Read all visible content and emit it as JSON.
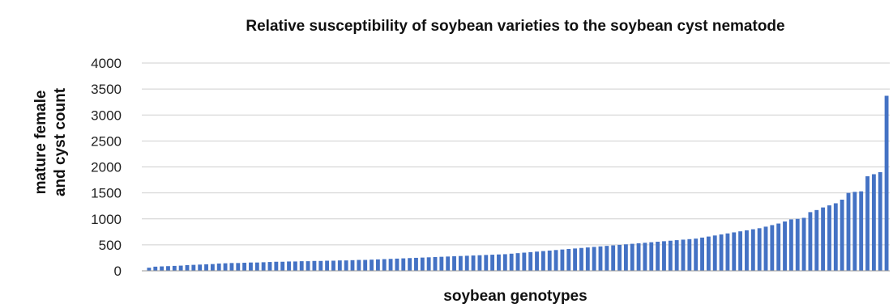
{
  "chart_data": {
    "type": "bar",
    "title": "Relative susceptibility of soybean varieties to the soybean cyst nematode",
    "xlabel": "soybean genotypes",
    "ylabel": [
      "mature female",
      "and cyst count"
    ],
    "ylim": [
      0,
      4000
    ],
    "yticks": [
      0,
      500,
      1000,
      1500,
      2000,
      2500,
      3000,
      3500,
      4000
    ],
    "grid": true,
    "legend": "none",
    "bar_color": "#4472c4",
    "values": [
      60,
      80,
      85,
      90,
      95,
      100,
      110,
      115,
      120,
      125,
      130,
      140,
      145,
      150,
      150,
      155,
      160,
      160,
      165,
      170,
      175,
      175,
      180,
      180,
      185,
      185,
      190,
      190,
      195,
      195,
      200,
      200,
      205,
      210,
      210,
      215,
      220,
      225,
      230,
      235,
      240,
      245,
      250,
      255,
      260,
      265,
      270,
      275,
      280,
      285,
      290,
      295,
      300,
      305,
      310,
      315,
      320,
      330,
      340,
      350,
      360,
      370,
      380,
      390,
      400,
      410,
      420,
      430,
      440,
      450,
      460,
      470,
      480,
      490,
      500,
      510,
      520,
      530,
      540,
      550,
      560,
      570,
      580,
      590,
      600,
      610,
      620,
      640,
      660,
      680,
      700,
      720,
      740,
      760,
      780,
      800,
      820,
      850,
      880,
      910,
      950,
      990,
      1000,
      1020,
      1130,
      1170,
      1220,
      1260,
      1300,
      1370,
      1500,
      1520,
      1530,
      1820,
      1860,
      1900,
      3370
    ]
  }
}
